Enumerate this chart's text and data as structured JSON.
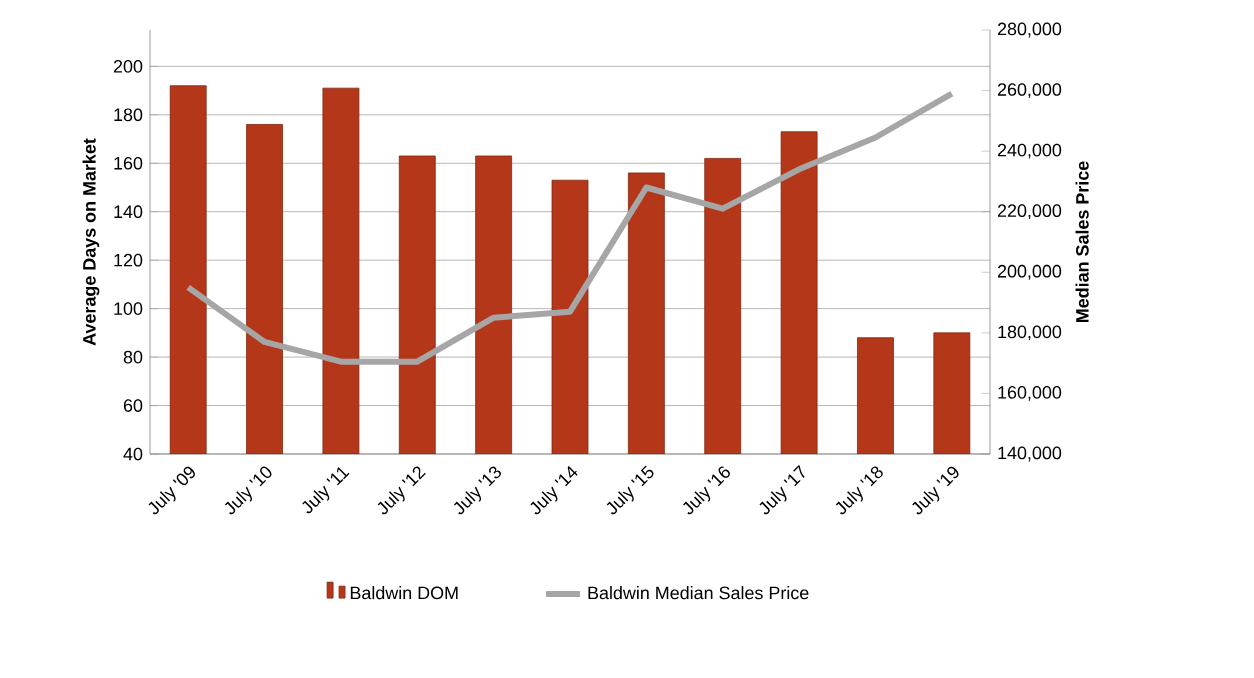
{
  "chart_data": {
    "type": "bar",
    "categories": [
      "July '09",
      "July '10",
      "July '11",
      "July '12",
      "July '13",
      "July '14",
      "July '15",
      "July '16",
      "July '17",
      "July '18",
      "July '19"
    ],
    "series": [
      {
        "name": "Baldwin DOM",
        "color": "#b5371a",
        "values": [
          192,
          176,
          191,
          163,
          163,
          153,
          156,
          162,
          173,
          88,
          90
        ]
      },
      {
        "name": "Baldwin Median Sales Price",
        "type": "line",
        "axis": "y2",
        "color": "#a6a6a6",
        "values": [
          195000,
          177000,
          170500,
          170500,
          185000,
          187000,
          228000,
          221000,
          234000,
          244500,
          259000
        ]
      }
    ],
    "ylabel": "Average Days on Market",
    "y2label": "Median Sales Price",
    "ylim": [
      40,
      215
    ],
    "yticks": [
      40,
      60,
      80,
      100,
      120,
      140,
      160,
      180,
      200
    ],
    "y2lim": [
      140000,
      280000
    ],
    "y2ticks": [
      {
        "value": 140000,
        "label": "140,000"
      },
      {
        "value": 160000,
        "label": "160,000"
      },
      {
        "value": 180000,
        "label": "180,000"
      },
      {
        "value": 200000,
        "label": "200,000"
      },
      {
        "value": 220000,
        "label": "220,000"
      },
      {
        "value": 240000,
        "label": "240,000"
      },
      {
        "value": 260000,
        "label": "260,000"
      },
      {
        "value": 280000,
        "label": "280,000"
      }
    ],
    "grid": "y",
    "legend": "bottom",
    "marker": "none",
    "line_style": "solid"
  }
}
